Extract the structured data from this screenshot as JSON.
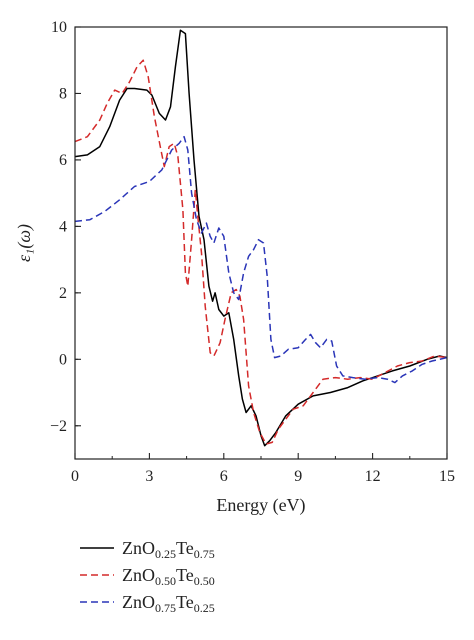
{
  "chart_data": {
    "type": "line",
    "xlabel": "Energy (eV)",
    "ylabel": "ε₁(ω)",
    "xlim": [
      0,
      15
    ],
    "ylim": [
      -3,
      10
    ],
    "x_ticks": [
      0,
      3,
      6,
      9,
      12,
      15
    ],
    "y_ticks": [
      -2,
      0,
      2,
      4,
      6,
      8,
      10
    ],
    "x_tick_labels": [
      "0",
      "3",
      "6",
      "9",
      "12",
      "15"
    ],
    "y_tick_labels": [
      "−2",
      "0",
      "2",
      "4",
      "6",
      "8",
      "10"
    ],
    "grid": false,
    "legend_position": "below",
    "series": [
      {
        "name": "ZnO0.25Te0.75",
        "name_parts": {
          "pre": "ZnO",
          "sub1": "0.25",
          "mid": "Te",
          "sub2": "0.75"
        },
        "color": "#000000",
        "dash": "solid",
        "points": [
          [
            0,
            6.1
          ],
          [
            0.5,
            6.15
          ],
          [
            1.0,
            6.4
          ],
          [
            1.4,
            7.0
          ],
          [
            1.8,
            7.8
          ],
          [
            2.1,
            8.15
          ],
          [
            2.4,
            8.15
          ],
          [
            2.9,
            8.1
          ],
          [
            3.1,
            7.95
          ],
          [
            3.4,
            7.4
          ],
          [
            3.65,
            7.2
          ],
          [
            3.85,
            7.6
          ],
          [
            4.05,
            8.8
          ],
          [
            4.25,
            9.9
          ],
          [
            4.45,
            9.8
          ],
          [
            4.6,
            8.0
          ],
          [
            4.8,
            6.0
          ],
          [
            5.0,
            4.3
          ],
          [
            5.2,
            3.6
          ],
          [
            5.4,
            2.2
          ],
          [
            5.55,
            1.75
          ],
          [
            5.65,
            2.0
          ],
          [
            5.8,
            1.5
          ],
          [
            6.0,
            1.3
          ],
          [
            6.2,
            1.4
          ],
          [
            6.4,
            0.6
          ],
          [
            6.6,
            -0.5
          ],
          [
            6.75,
            -1.2
          ],
          [
            6.9,
            -1.6
          ],
          [
            7.1,
            -1.4
          ],
          [
            7.3,
            -1.7
          ],
          [
            7.5,
            -2.3
          ],
          [
            7.65,
            -2.6
          ],
          [
            7.85,
            -2.45
          ],
          [
            8.1,
            -2.2
          ],
          [
            8.5,
            -1.7
          ],
          [
            9.0,
            -1.35
          ],
          [
            9.6,
            -1.1
          ],
          [
            10.3,
            -1.0
          ],
          [
            11.0,
            -0.85
          ],
          [
            11.6,
            -0.65
          ],
          [
            12.2,
            -0.5
          ],
          [
            12.8,
            -0.35
          ],
          [
            13.5,
            -0.2
          ],
          [
            14.2,
            0.0
          ],
          [
            14.7,
            0.1
          ],
          [
            15,
            0.05
          ]
        ]
      },
      {
        "name": "ZnO0.50Te0.50",
        "name_parts": {
          "pre": "ZnO",
          "sub1": "0.50",
          "mid": "Te",
          "sub2": "0.50"
        },
        "color": "#d42a2a",
        "dash": "dashed",
        "points": [
          [
            0,
            6.55
          ],
          [
            0.5,
            6.7
          ],
          [
            1.0,
            7.2
          ],
          [
            1.3,
            7.7
          ],
          [
            1.6,
            8.1
          ],
          [
            1.9,
            8.0
          ],
          [
            2.2,
            8.35
          ],
          [
            2.5,
            8.8
          ],
          [
            2.75,
            9.0
          ],
          [
            2.95,
            8.5
          ],
          [
            3.2,
            7.3
          ],
          [
            3.45,
            6.35
          ],
          [
            3.6,
            5.8
          ],
          [
            3.8,
            6.4
          ],
          [
            4.0,
            6.5
          ],
          [
            4.15,
            6.1
          ],
          [
            4.35,
            4.5
          ],
          [
            4.45,
            2.6
          ],
          [
            4.55,
            2.2
          ],
          [
            4.7,
            3.6
          ],
          [
            4.85,
            5.1
          ],
          [
            4.95,
            4.3
          ],
          [
            5.1,
            3.2
          ],
          [
            5.25,
            1.6
          ],
          [
            5.45,
            0.2
          ],
          [
            5.6,
            0.1
          ],
          [
            5.85,
            0.5
          ],
          [
            6.05,
            1.2
          ],
          [
            6.3,
            2.0
          ],
          [
            6.5,
            2.1
          ],
          [
            6.65,
            1.9
          ],
          [
            6.8,
            1.2
          ],
          [
            7.0,
            -0.8
          ],
          [
            7.2,
            -1.6
          ],
          [
            7.45,
            -2.2
          ],
          [
            7.7,
            -2.55
          ],
          [
            7.95,
            -2.5
          ],
          [
            8.2,
            -2.1
          ],
          [
            8.5,
            -1.8
          ],
          [
            8.8,
            -1.5
          ],
          [
            9.2,
            -1.4
          ],
          [
            9.6,
            -1.0
          ],
          [
            10.0,
            -0.6
          ],
          [
            10.5,
            -0.55
          ],
          [
            11.0,
            -0.6
          ],
          [
            11.5,
            -0.55
          ],
          [
            12.0,
            -0.6
          ],
          [
            12.5,
            -0.4
          ],
          [
            13.0,
            -0.2
          ],
          [
            13.5,
            -0.1
          ],
          [
            14.0,
            -0.05
          ],
          [
            14.5,
            0.1
          ],
          [
            15,
            0.05
          ]
        ]
      },
      {
        "name": "ZnO0.75Te0.25",
        "name_parts": {
          "pre": "ZnO",
          "sub1": "0.75",
          "mid": "Te",
          "sub2": "0.25"
        },
        "color": "#2a35b8",
        "dash": "dashed",
        "points": [
          [
            0,
            4.15
          ],
          [
            0.6,
            4.2
          ],
          [
            1.2,
            4.45
          ],
          [
            1.8,
            4.8
          ],
          [
            2.4,
            5.2
          ],
          [
            3.0,
            5.35
          ],
          [
            3.5,
            5.7
          ],
          [
            3.9,
            6.3
          ],
          [
            4.2,
            6.5
          ],
          [
            4.4,
            6.7
          ],
          [
            4.55,
            6.3
          ],
          [
            4.7,
            5.0
          ],
          [
            4.9,
            4.2
          ],
          [
            5.1,
            3.8
          ],
          [
            5.3,
            4.1
          ],
          [
            5.45,
            3.7
          ],
          [
            5.6,
            3.5
          ],
          [
            5.8,
            3.95
          ],
          [
            6.0,
            3.7
          ],
          [
            6.2,
            2.6
          ],
          [
            6.4,
            2.0
          ],
          [
            6.6,
            1.8
          ],
          [
            6.8,
            2.6
          ],
          [
            7.0,
            3.1
          ],
          [
            7.2,
            3.3
          ],
          [
            7.4,
            3.6
          ],
          [
            7.6,
            3.5
          ],
          [
            7.75,
            2.5
          ],
          [
            7.9,
            0.6
          ],
          [
            8.05,
            0.05
          ],
          [
            8.3,
            0.1
          ],
          [
            8.6,
            0.3
          ],
          [
            9.0,
            0.35
          ],
          [
            9.3,
            0.6
          ],
          [
            9.5,
            0.75
          ],
          [
            9.7,
            0.5
          ],
          [
            9.9,
            0.35
          ],
          [
            10.15,
            0.6
          ],
          [
            10.35,
            0.55
          ],
          [
            10.55,
            -0.2
          ],
          [
            10.8,
            -0.5
          ],
          [
            11.2,
            -0.55
          ],
          [
            11.7,
            -0.6
          ],
          [
            12.2,
            -0.55
          ],
          [
            12.6,
            -0.6
          ],
          [
            12.9,
            -0.7
          ],
          [
            13.2,
            -0.5
          ],
          [
            13.6,
            -0.35
          ],
          [
            14.0,
            -0.15
          ],
          [
            14.4,
            -0.05
          ],
          [
            14.7,
            0.0
          ],
          [
            15,
            0.05
          ]
        ]
      }
    ]
  }
}
